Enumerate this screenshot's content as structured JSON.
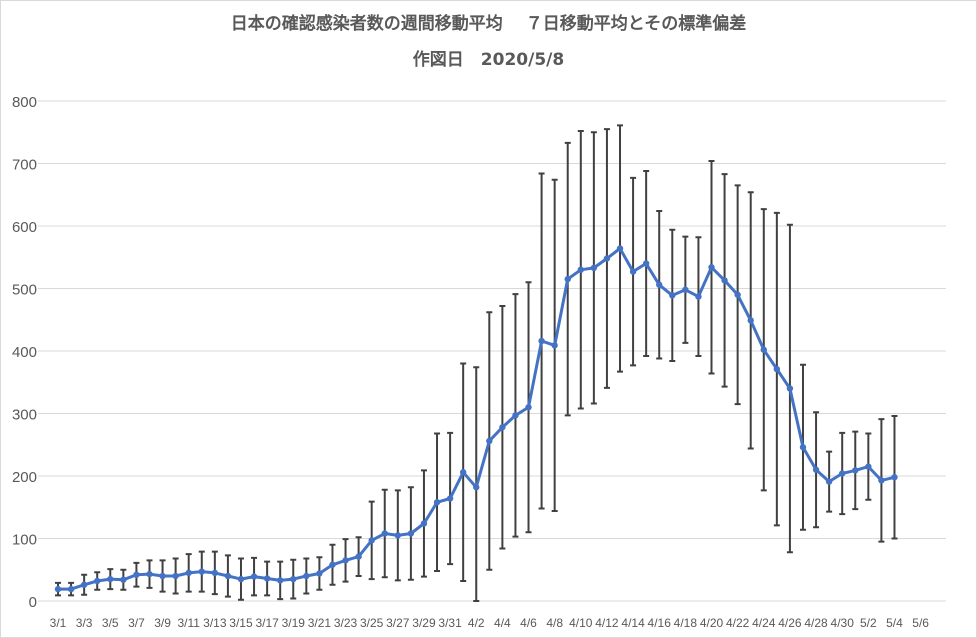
{
  "chart_data": {
    "type": "line",
    "title": "日本の確認感染者数の週間移動平均　 ７日移動平均とその標準偏差",
    "subtitle": "作図日　2020/5/8",
    "xlabel": "",
    "ylabel": "",
    "ylim": [
      0,
      800
    ],
    "y_ticks": [
      "0",
      "100",
      "200",
      "300",
      "400",
      "500",
      "600",
      "700",
      "800"
    ],
    "x_tick_labels": [
      "3/1",
      "3/3",
      "3/5",
      "3/7",
      "3/9",
      "3/11",
      "3/13",
      "3/15",
      "3/17",
      "3/19",
      "3/21",
      "3/23",
      "3/25",
      "3/27",
      "3/29",
      "3/31",
      "4/2",
      "4/4",
      "4/6",
      "4/8",
      "4/10",
      "4/12",
      "4/14",
      "4/16",
      "4/18",
      "4/20",
      "4/22",
      "4/24",
      "4/26",
      "4/28",
      "4/30",
      "5/2",
      "5/4",
      "5/6"
    ],
    "grid": "horizontal",
    "legend": "none",
    "colors": {
      "line": "#4472c4",
      "error_bar": "#404040",
      "grid": "#d9d9d9",
      "text": "#595959"
    },
    "x": [
      "3/1",
      "3/2",
      "3/3",
      "3/4",
      "3/5",
      "3/6",
      "3/7",
      "3/8",
      "3/9",
      "3/10",
      "3/11",
      "3/12",
      "3/13",
      "3/14",
      "3/15",
      "3/16",
      "3/17",
      "3/18",
      "3/19",
      "3/20",
      "3/21",
      "3/22",
      "3/23",
      "3/24",
      "3/25",
      "3/26",
      "3/27",
      "3/28",
      "3/29",
      "3/30",
      "3/31",
      "4/1",
      "4/2",
      "4/3",
      "4/4",
      "4/5",
      "4/6",
      "4/7",
      "4/8",
      "4/9",
      "4/10",
      "4/11",
      "4/12",
      "4/13",
      "4/14",
      "4/15",
      "4/16",
      "4/17",
      "4/18",
      "4/19",
      "4/20",
      "4/21",
      "4/22",
      "4/23",
      "4/24",
      "4/25",
      "4/26",
      "4/27",
      "4/28",
      "4/29",
      "4/30",
      "5/1",
      "5/2",
      "5/3",
      "5/4"
    ],
    "series": [
      {
        "values": [
          19,
          19,
          26,
          32,
          35,
          34,
          42,
          43,
          40,
          40,
          45,
          47,
          45,
          40,
          35,
          39,
          36,
          33,
          35,
          40,
          44,
          58,
          65,
          71,
          97,
          108,
          105,
          108,
          124,
          158,
          164,
          206,
          182,
          256,
          278,
          297,
          310,
          416,
          409,
          515,
          530,
          533,
          548,
          564,
          527,
          540,
          506,
          489,
          498,
          487,
          534,
          513,
          490,
          449,
          402,
          371,
          340,
          246,
          210,
          191,
          204,
          209,
          215,
          193,
          198
        ],
        "std": [
          10,
          10,
          16,
          14,
          16,
          16,
          19,
          22,
          25,
          28,
          30,
          32,
          34,
          33,
          33,
          30,
          27,
          30,
          31,
          28,
          26,
          32,
          34,
          31,
          62,
          70,
          72,
          74,
          85,
          110,
          105,
          174,
          192,
          206,
          194,
          194,
          200,
          268,
          265,
          218,
          222,
          217,
          207,
          197,
          150,
          148,
          118,
          105,
          85,
          95,
          170,
          170,
          175,
          205,
          225,
          250,
          262,
          132,
          92,
          48,
          65,
          62,
          53,
          98,
          98
        ]
      }
    ]
  }
}
